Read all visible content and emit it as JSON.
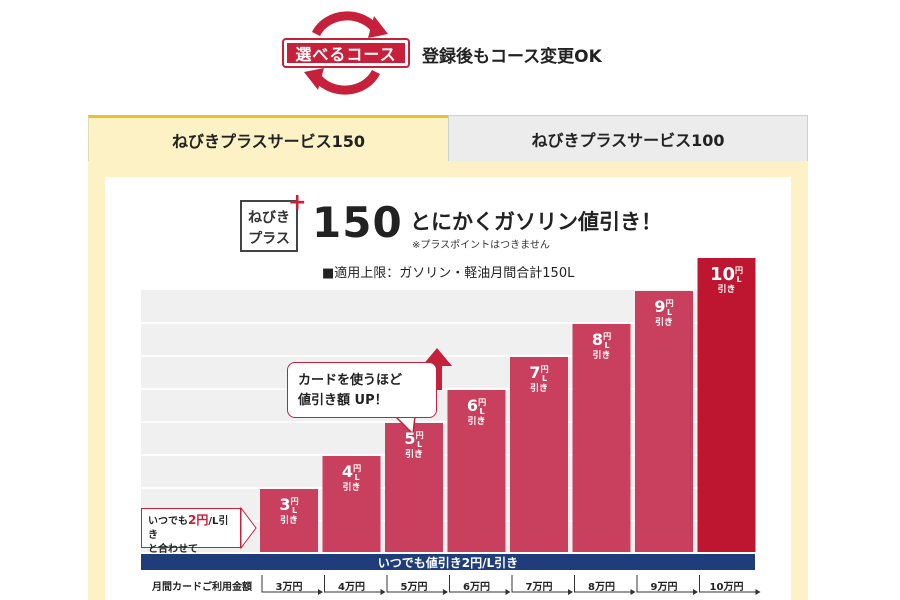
{
  "header": {
    "badge_label": "選べるコース",
    "caption": "登録後もコース変更OK"
  },
  "tabs": [
    {
      "label": "ねびきプラスサービス150",
      "active": true
    },
    {
      "label": "ねびきプラスサービス100",
      "active": false
    }
  ],
  "plan": {
    "logo_line1": "ねびき",
    "logo_line2": "プラス",
    "logo_plus": "+",
    "number": "150",
    "headline": "とにかくガソリン値引き！",
    "note": "※プラスポイントはつきません",
    "limit": "■適用上限：ガソリン・軽油月間合計150L"
  },
  "callout": {
    "line1": "カードを使うほど",
    "line2": "値引き額 UP！"
  },
  "side_note": {
    "pre": "いつでも",
    "strong": "2円",
    "post": "/L引き",
    "line2": "と合わせて"
  },
  "base_band": "いつでも値引き2円/L引き",
  "colors": {
    "accent_red": "#c6203a",
    "bar_pink": "#c9405f",
    "bar_top": "#be1630",
    "navy": "#1f3d7a",
    "tab_yellow": "#fcf2c6"
  },
  "chart_data": {
    "type": "bar",
    "title": "",
    "xlabel": "月間カードご利用金額",
    "ylabel": "",
    "categories": [
      "3万円",
      "4万円",
      "5万円",
      "6万円",
      "7万円",
      "8万円",
      "9万円",
      "10万円"
    ],
    "values": [
      3,
      4,
      5,
      6,
      7,
      8,
      9,
      10
    ],
    "value_unit_top": "円",
    "value_unit_bottom": "L",
    "value_suffix": "引き",
    "ylim": [
      0,
      10
    ],
    "grid": true
  }
}
